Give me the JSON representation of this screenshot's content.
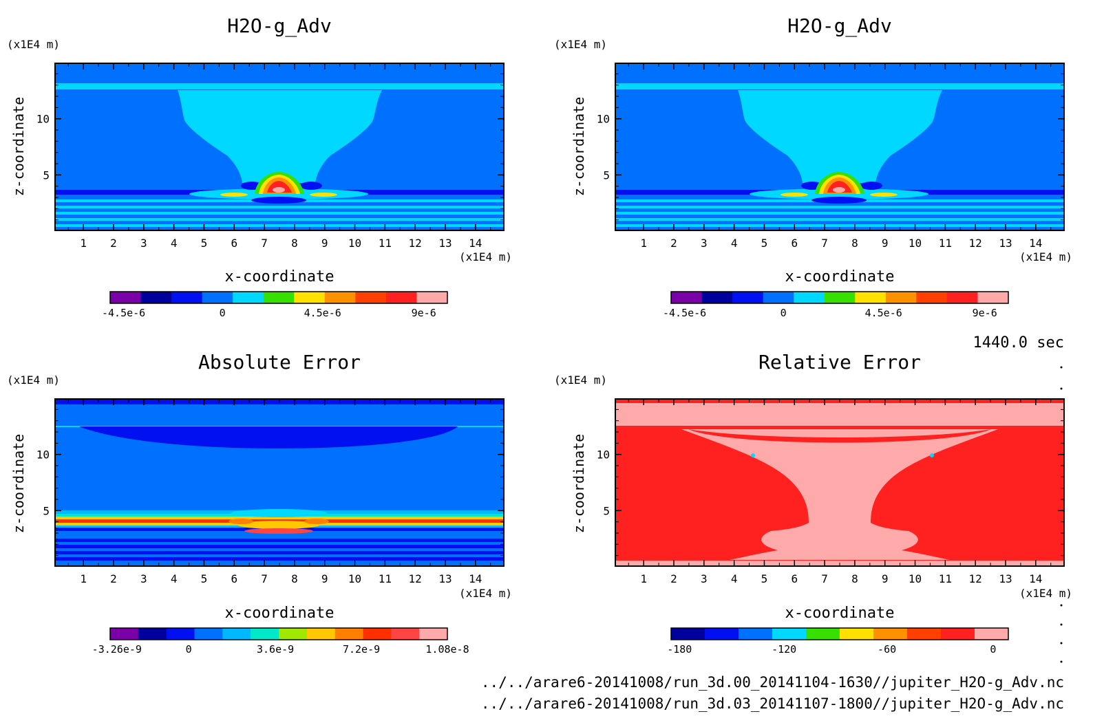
{
  "panels": [
    {
      "title": "H2O-g_Adv",
      "xlabel": "x-coordinate",
      "ylabel": "z-coordinate",
      "xunit": "(x1E4 m)",
      "yunit": "(x1E4 m)",
      "field": "adv"
    },
    {
      "title": "H2O-g_Adv",
      "xlabel": "x-coordinate",
      "ylabel": "z-coordinate",
      "xunit": "(x1E4 m)",
      "yunit": "(x1E4 m)",
      "field": "adv"
    },
    {
      "title": "Absolute Error",
      "xlabel": "x-coordinate",
      "ylabel": "z-coordinate",
      "xunit": "(x1E4 m)",
      "yunit": "(x1E4 m)",
      "field": "abs"
    },
    {
      "title": "Relative Error",
      "xlabel": "x-coordinate",
      "ylabel": "z-coordinate",
      "xunit": "(x1E4 m)",
      "yunit": "(x1E4 m)",
      "field": "rel"
    }
  ],
  "colorbars": [
    {
      "colors": [
        "#7a00a8",
        "#00009c",
        "#0010f0",
        "#0070ff",
        "#00d8ff",
        "#38e000",
        "#ffe000",
        "#ff9000",
        "#ff4000",
        "#ff2020",
        "#ffaaaa"
      ],
      "tick_labels": [
        "-4.5e-6",
        "0",
        "4.5e-6",
        "9e-6"
      ]
    },
    {
      "colors": [
        "#7a00a8",
        "#00009c",
        "#0010f0",
        "#0070ff",
        "#00d8ff",
        "#38e000",
        "#ffe000",
        "#ff9000",
        "#ff4000",
        "#ff2020",
        "#ffaaaa"
      ],
      "tick_labels": [
        "-4.5e-6",
        "0",
        "4.5e-6",
        "9e-6"
      ]
    },
    {
      "colors": [
        "#7a00a8",
        "#00009c",
        "#0010f0",
        "#0070ff",
        "#00b8ff",
        "#00e8c8",
        "#a0e800",
        "#ffc800",
        "#ff8000",
        "#ff3000",
        "#ff4444",
        "#ffaaaa"
      ],
      "tick_labels": [
        "-3.26e-9",
        "0",
        "3.6e-9",
        "7.2e-9",
        "1.08e-8"
      ]
    },
    {
      "colors": [
        "#00009c",
        "#0010f0",
        "#0070ff",
        "#00d8ff",
        "#38e000",
        "#ffe000",
        "#ff9000",
        "#ff4000",
        "#ff2020",
        "#ffaaaa"
      ],
      "tick_labels": [
        "-180",
        "-120",
        "-60",
        "0"
      ]
    }
  ],
  "chart_data": [
    {
      "type": "heatmap",
      "title": "H2O-g_Adv",
      "xlabel": "x-coordinate",
      "ylabel": "z-coordinate",
      "x_unit": "x1E4 m",
      "y_unit": "x1E4 m",
      "x_ticks": [
        1,
        2,
        3,
        4,
        5,
        6,
        7,
        8,
        9,
        10,
        11,
        12,
        13,
        14
      ],
      "y_ticks": [
        5,
        10
      ],
      "xlim": [
        0.06,
        14.94
      ],
      "ylim": [
        0.06,
        14.94
      ],
      "colorbar_levels": [
        -6.75e-06,
        -4.5e-06,
        -2.25e-06,
        0,
        2.25e-06,
        4.5e-06,
        6.75e-06,
        9e-06,
        1.125e-05
      ],
      "colorbar_tick_labels": [
        "-4.5e-6",
        "0",
        "4.5e-6",
        "9e-6"
      ]
    },
    {
      "type": "heatmap",
      "title": "H2O-g_Adv",
      "xlabel": "x-coordinate",
      "ylabel": "z-coordinate",
      "x_unit": "x1E4 m",
      "y_unit": "x1E4 m",
      "x_ticks": [
        1,
        2,
        3,
        4,
        5,
        6,
        7,
        8,
        9,
        10,
        11,
        12,
        13,
        14
      ],
      "y_ticks": [
        5,
        10
      ],
      "xlim": [
        0.06,
        14.94
      ],
      "ylim": [
        0.06,
        14.94
      ],
      "colorbar_tick_labels": [
        "-4.5e-6",
        "0",
        "4.5e-6",
        "9e-6"
      ]
    },
    {
      "type": "heatmap",
      "title": "Absolute Error",
      "xlabel": "x-coordinate",
      "ylabel": "z-coordinate",
      "x_unit": "x1E4 m",
      "y_unit": "x1E4 m",
      "x_ticks": [
        1,
        2,
        3,
        4,
        5,
        6,
        7,
        8,
        9,
        10,
        11,
        12,
        13,
        14
      ],
      "y_ticks": [
        5,
        10
      ],
      "xlim": [
        0.06,
        14.94
      ],
      "ylim": [
        0.06,
        14.94
      ],
      "colorbar_tick_labels": [
        "-3.26e-9",
        "0",
        "3.6e-9",
        "7.2e-9",
        "1.08e-8"
      ]
    },
    {
      "type": "heatmap",
      "title": "Relative Error",
      "xlabel": "x-coordinate",
      "ylabel": "z-coordinate",
      "x_unit": "x1E4 m",
      "y_unit": "x1E4 m",
      "x_ticks": [
        1,
        2,
        3,
        4,
        5,
        6,
        7,
        8,
        9,
        10,
        11,
        12,
        13,
        14
      ],
      "y_ticks": [
        5,
        10
      ],
      "xlim": [
        0.06,
        14.94
      ],
      "ylim": [
        0.06,
        14.94
      ],
      "colorbar_tick_labels": [
        "-180",
        "-120",
        "-60",
        "0"
      ]
    }
  ],
  "time_label": "1440.0 sec",
  "file_paths": [
    "../../arare6-20141008/run_3d.00_20141104-1630//jupiter_H2O-g_Adv.nc",
    "../../arare6-20141008/run_3d.03_20141107-1800//jupiter_H2O-g_Adv.nc"
  ]
}
